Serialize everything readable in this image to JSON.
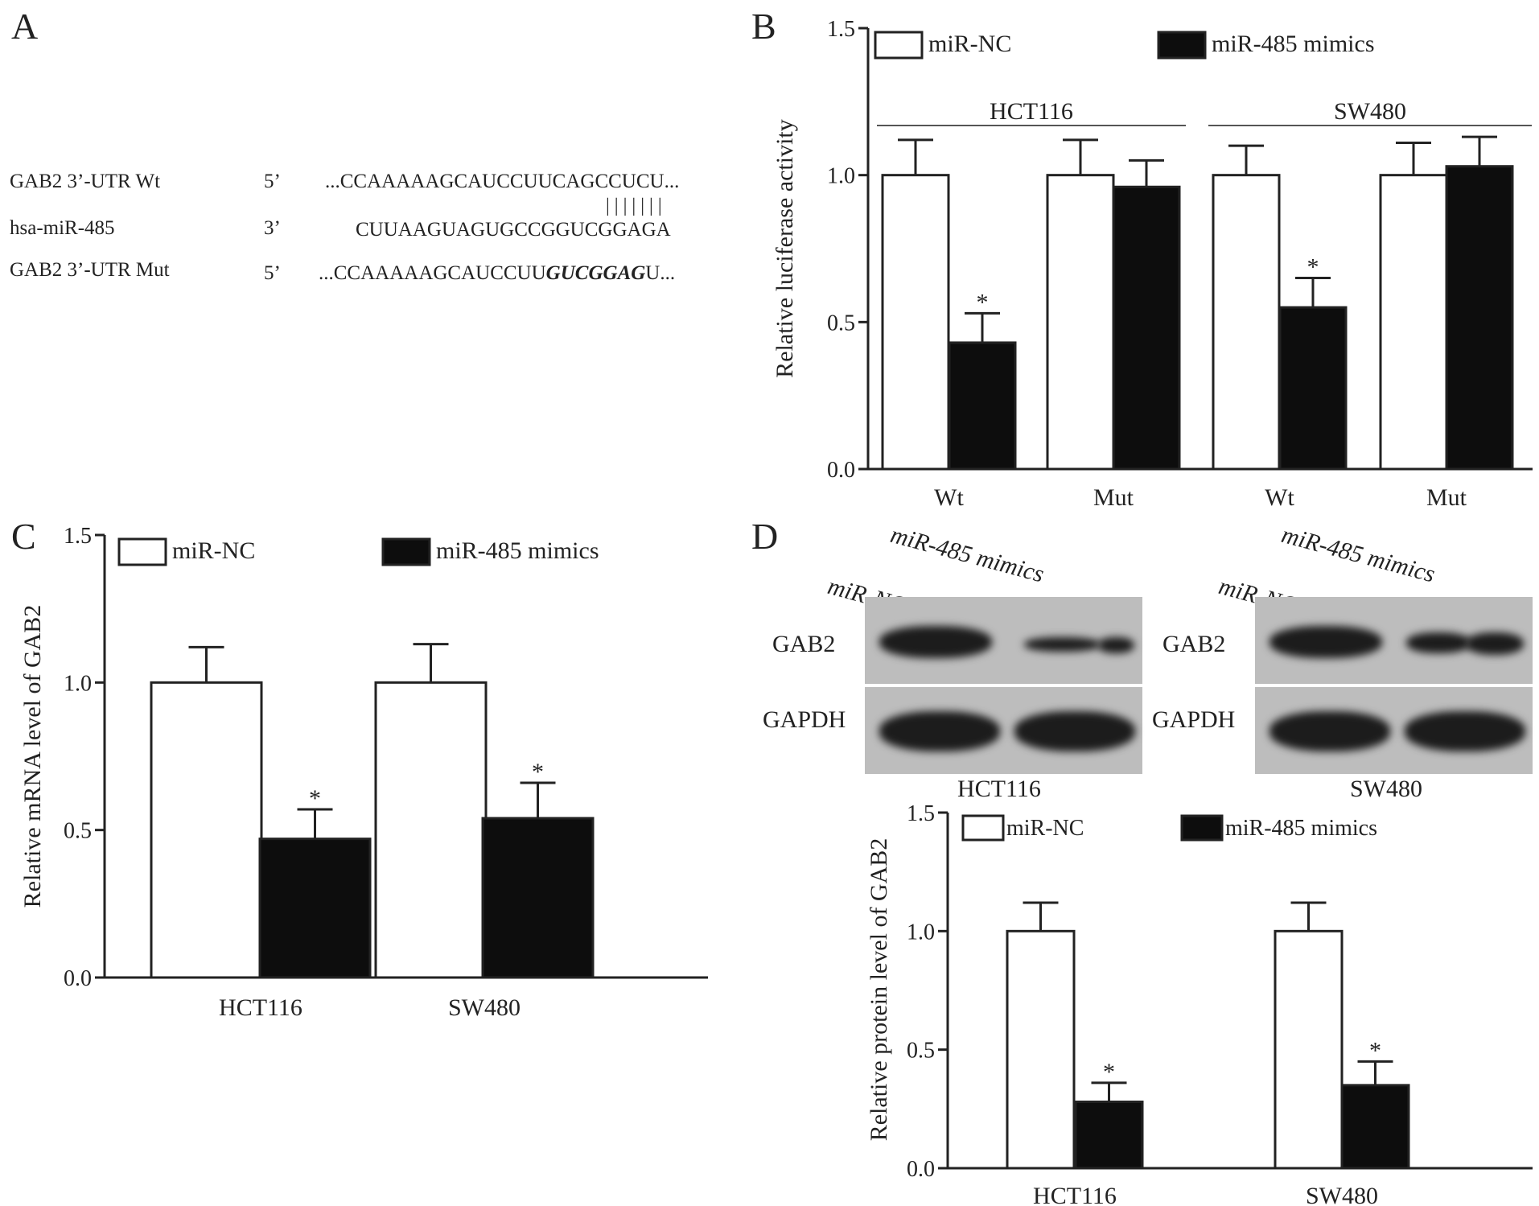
{
  "panels": {
    "A": {
      "letter": "A",
      "rows": [
        {
          "label": "GAB2 3’-UTR Wt",
          "end": "5’",
          "seq": "...CCAAAAAGCAUCCUUCAGCCUCU..."
        },
        {
          "label": "hsa-miR-485",
          "end": "3’",
          "seq": "CUUAAGUAGUGCCGGUCGGAGA"
        },
        {
          "label": "GAB2 3’-UTR Mut",
          "end": "5’",
          "seq_pre": "...CCAAAAAGCAUCCUU",
          "seq_mut": "GUCGGAG",
          "seq_post": "U..."
        }
      ],
      "pairing_marks": "| | | | | | |"
    },
    "B": {
      "letter": "B"
    },
    "C": {
      "letter": "C"
    },
    "D": {
      "letter": "D",
      "blots": [
        {
          "cell_line": "HCT116",
          "lane_labels": [
            "miR-NC",
            "miR-485 mimics"
          ],
          "rows": [
            "GAB2",
            "GAPDH"
          ]
        },
        {
          "cell_line": "SW480",
          "lane_labels": [
            "miR-NC",
            "miR-485 mimics"
          ],
          "rows": [
            "GAB2",
            "GAPDH"
          ]
        }
      ]
    }
  },
  "colors": {
    "nc": "#ffffff",
    "mimics": "#0d0d0d",
    "axis": "#222222"
  },
  "chart_data": [
    {
      "id": "B",
      "type": "bar",
      "ylabel": "Relative luciferase activity",
      "ylim": [
        0,
        1.5
      ],
      "yticks": [
        "0.0",
        "0.5",
        "1.0",
        "1.5"
      ],
      "groups": [
        "HCT116",
        "SW480"
      ],
      "categories": [
        "Wt",
        "Mut",
        "Wt",
        "Mut"
      ],
      "series": [
        {
          "name": "miR-NC",
          "values": [
            1.0,
            1.0,
            1.0,
            1.0
          ],
          "errors": [
            0.12,
            0.12,
            0.1,
            0.11
          ]
        },
        {
          "name": "miR-485 mimics",
          "values": [
            0.43,
            0.96,
            0.55,
            1.03
          ],
          "errors": [
            0.1,
            0.09,
            0.1,
            0.1
          ]
        }
      ],
      "significance": [
        "*",
        "",
        "*",
        ""
      ],
      "legend": "top"
    },
    {
      "id": "C",
      "type": "bar",
      "ylabel": "Relative mRNA level of GAB2",
      "ylim": [
        0,
        1.5
      ],
      "yticks": [
        "0.0",
        "0.5",
        "1.0",
        "1.5"
      ],
      "categories": [
        "HCT116",
        "SW480"
      ],
      "series": [
        {
          "name": "miR-NC",
          "values": [
            1.0,
            1.0
          ],
          "errors": [
            0.12,
            0.13
          ]
        },
        {
          "name": "miR-485 mimics",
          "values": [
            0.47,
            0.54
          ],
          "errors": [
            0.1,
            0.12
          ]
        }
      ],
      "significance": [
        "*",
        "*"
      ],
      "legend": "top"
    },
    {
      "id": "D",
      "type": "bar",
      "ylabel": "Relative protein level of GAB2",
      "ylim": [
        0,
        1.5
      ],
      "yticks": [
        "0.0",
        "0.5",
        "1.0",
        "1.5"
      ],
      "categories": [
        "HCT116",
        "SW480"
      ],
      "series": [
        {
          "name": "miR-NC",
          "values": [
            1.0,
            1.0
          ],
          "errors": [
            0.12,
            0.12
          ]
        },
        {
          "name": "miR-485 mimics",
          "values": [
            0.28,
            0.35
          ],
          "errors": [
            0.08,
            0.1
          ]
        }
      ],
      "significance": [
        "*",
        "*"
      ],
      "legend": "top"
    }
  ]
}
